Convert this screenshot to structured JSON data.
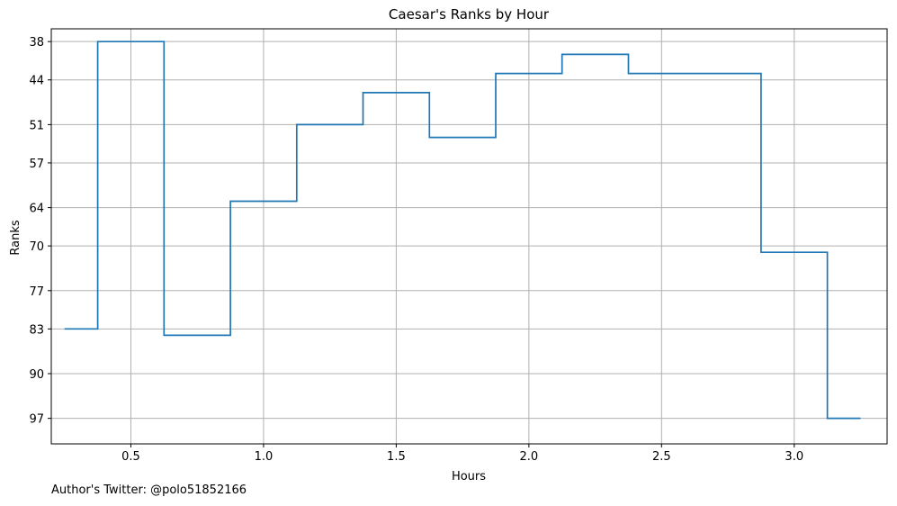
{
  "chart_data": {
    "type": "line",
    "step": true,
    "title": "Caesar's Ranks by Hour",
    "xlabel": "Hours",
    "ylabel": "Ranks",
    "y_inverted": true,
    "grid": true,
    "xlim": [
      0.2,
      3.35
    ],
    "ylim": [
      101,
      36
    ],
    "x_ticks": [
      0.5,
      1.0,
      1.5,
      2.0,
      2.5,
      3.0
    ],
    "x_tick_labels": [
      "0.5",
      "1.0",
      "1.5",
      "2.0",
      "2.5",
      "3.0"
    ],
    "y_ticks": [
      38,
      44,
      51,
      57,
      64,
      70,
      77,
      83,
      90,
      97
    ],
    "y_tick_labels": [
      "38",
      "44",
      "51",
      "57",
      "64",
      "70",
      "77",
      "83",
      "90",
      "97"
    ],
    "series": [
      {
        "color": "#1f77b4",
        "x": [
          0.25,
          0.375,
          0.375,
          0.625,
          0.625,
          0.875,
          0.875,
          1.125,
          1.125,
          1.375,
          1.375,
          1.625,
          1.625,
          1.875,
          1.875,
          2.125,
          2.125,
          2.375,
          2.375,
          2.875,
          2.875,
          3.125,
          3.125,
          3.25
        ],
        "y": [
          83,
          83,
          38,
          38,
          84,
          84,
          63,
          63,
          51,
          51,
          46,
          46,
          53,
          53,
          43,
          43,
          40,
          40,
          43,
          43,
          71,
          71,
          97,
          97
        ]
      }
    ]
  },
  "footnote": "Author's Twitter: @polo51852166"
}
